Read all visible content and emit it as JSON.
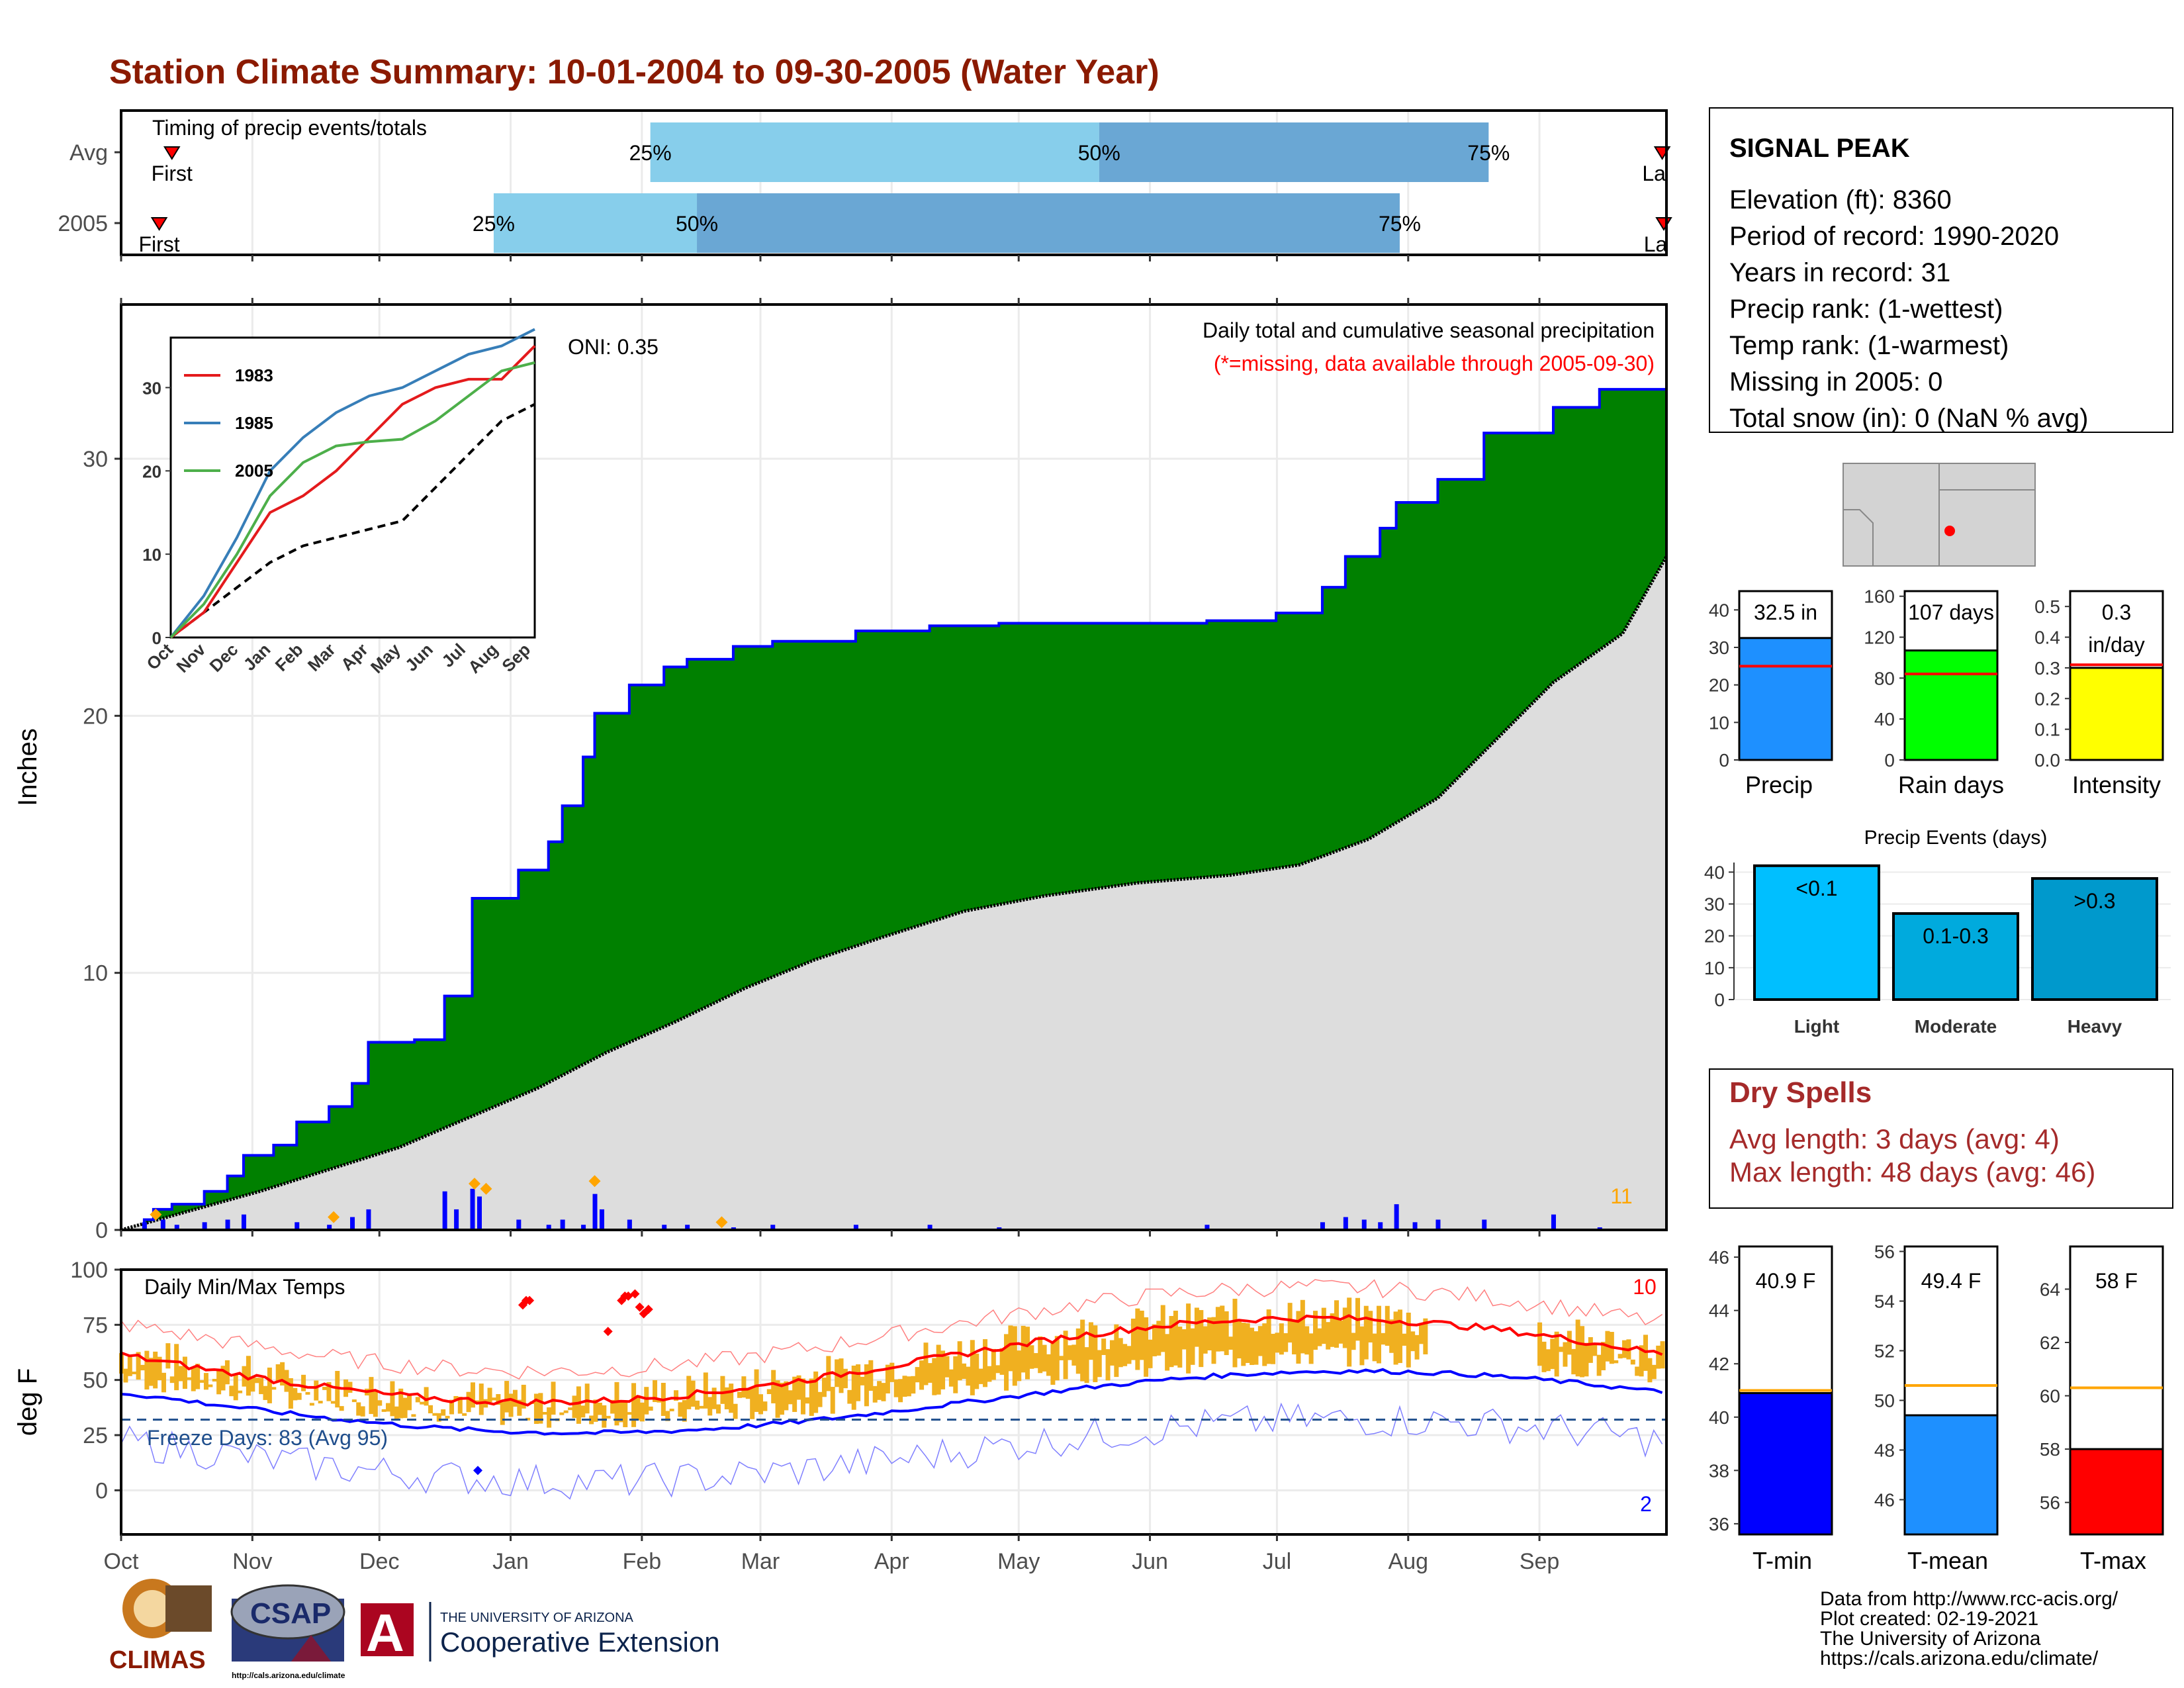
{
  "title": "Station Climate Summary: 10-01-2004 to 09-30-2005 (Water Year)",
  "months": [
    "Oct",
    "Nov",
    "Dec",
    "Jan",
    "Feb",
    "Mar",
    "Apr",
    "May",
    "Jun",
    "Jul",
    "Aug",
    "Sep"
  ],
  "timing": {
    "title": "Timing of precip events/totals",
    "rows": [
      "Avg",
      "2005"
    ],
    "first_label": "First",
    "last_label": "Last",
    "avg": {
      "first_day": 12,
      "p25_day": 125,
      "p50_day": 231,
      "p75_day": 323,
      "last_day": 364
    },
    "y2005": {
      "first_day": 9,
      "p25_day": 88,
      "p50_day": 136,
      "p75_day": 302,
      "last_day": 366
    },
    "pct_labels": [
      "25%",
      "50%",
      "75%"
    ]
  },
  "precip": {
    "ylabel": "Inches",
    "title_line1": "Daily total and cumulative seasonal precipitation",
    "title_line2": "(*=missing, data available through 2005-09-30)",
    "count_label": "11",
    "ylim": [
      0,
      36
    ],
    "yticks": [
      0,
      10,
      20,
      30
    ],
    "cum_2005": [
      [
        0,
        0
      ],
      [
        10,
        0.4
      ],
      [
        14,
        0.8
      ],
      [
        22,
        1.0
      ],
      [
        36,
        1.5
      ],
      [
        46,
        2.1
      ],
      [
        53,
        2.9
      ],
      [
        66,
        3.3
      ],
      [
        76,
        4.2
      ],
      [
        90,
        4.8
      ],
      [
        100,
        5.7
      ],
      [
        107,
        7.3
      ],
      [
        127,
        7.4
      ],
      [
        140,
        9.1
      ],
      [
        152,
        12.9
      ],
      [
        172,
        14.0
      ],
      [
        185,
        15.1
      ],
      [
        191,
        16.5
      ],
      [
        200,
        18.4
      ],
      [
        205,
        20.1
      ],
      [
        220,
        21.2
      ],
      [
        235,
        21.9
      ],
      [
        245,
        22.2
      ],
      [
        265,
        22.7
      ],
      [
        282,
        22.9
      ],
      [
        318,
        23.3
      ],
      [
        350,
        23.5
      ],
      [
        380,
        23.6
      ],
      [
        430,
        23.6
      ],
      [
        470,
        23.7
      ],
      [
        500,
        24.0
      ],
      [
        520,
        25.0
      ],
      [
        530,
        26.2
      ],
      [
        545,
        27.3
      ],
      [
        552,
        28.3
      ],
      [
        570,
        29.2
      ],
      [
        590,
        31.0
      ],
      [
        620,
        32.0
      ],
      [
        640,
        32.7
      ],
      [
        669,
        32.7
      ]
    ],
    "avg_cum": [
      [
        0,
        0
      ],
      [
        60,
        1.5
      ],
      [
        120,
        3.2
      ],
      [
        180,
        5.5
      ],
      [
        210,
        6.9
      ],
      [
        240,
        8.1
      ],
      [
        270,
        9.4
      ],
      [
        300,
        10.5
      ],
      [
        330,
        11.4
      ],
      [
        365,
        12.4
      ],
      [
        400,
        13.0
      ],
      [
        440,
        13.5
      ],
      [
        480,
        13.8
      ],
      [
        510,
        14.2
      ],
      [
        540,
        15.2
      ],
      [
        570,
        16.8
      ],
      [
        600,
        19.5
      ],
      [
        620,
        21.3
      ],
      [
        650,
        23.2
      ],
      [
        669,
        26.2
      ]
    ],
    "daily_bars": [
      [
        10,
        0.3
      ],
      [
        18,
        0.4
      ],
      [
        24,
        0.2
      ],
      [
        36,
        0.3
      ],
      [
        46,
        0.4
      ],
      [
        53,
        0.6
      ],
      [
        76,
        0.3
      ],
      [
        90,
        0.2
      ],
      [
        100,
        0.5
      ],
      [
        107,
        0.8
      ],
      [
        140,
        1.5
      ],
      [
        145,
        0.8
      ],
      [
        152,
        1.6
      ],
      [
        155,
        1.3
      ],
      [
        172,
        0.4
      ],
      [
        185,
        0.2
      ],
      [
        191,
        0.4
      ],
      [
        200,
        0.2
      ],
      [
        205,
        1.4
      ],
      [
        208,
        0.8
      ],
      [
        220,
        0.4
      ],
      [
        235,
        0.2
      ],
      [
        245,
        0.2
      ],
      [
        265,
        0.1
      ],
      [
        282,
        0.2
      ],
      [
        318,
        0.2
      ],
      [
        350,
        0.2
      ],
      [
        380,
        0.1
      ],
      [
        470,
        0.2
      ],
      [
        520,
        0.3
      ],
      [
        530,
        0.5
      ],
      [
        538,
        0.4
      ],
      [
        545,
        0.3
      ],
      [
        552,
        1.0
      ],
      [
        560,
        0.3
      ],
      [
        570,
        0.4
      ],
      [
        590,
        0.4
      ],
      [
        620,
        0.6
      ],
      [
        640,
        0.1
      ]
    ],
    "missing_marks": [
      [
        15,
        0.6
      ],
      [
        92,
        0.5
      ],
      [
        153,
        1.8
      ],
      [
        158,
        1.6
      ],
      [
        205,
        1.9
      ],
      [
        260,
        0.3
      ]
    ],
    "oni_label": "ONI: 0.35"
  },
  "inset": {
    "legend": [
      {
        "name": "1983",
        "color": "#e41a1c"
      },
      {
        "name": "1985",
        "color": "#377eb8"
      },
      {
        "name": "2005",
        "color": "#4daf4a"
      }
    ],
    "xlabels": [
      "Oct",
      "Nov",
      "Dec",
      "Jan",
      "Feb",
      "Mar",
      "Apr",
      "May",
      "Jun",
      "Jul",
      "Aug",
      "Sep"
    ],
    "yticks": [
      0,
      10,
      20,
      30
    ],
    "ylim": [
      0,
      36
    ],
    "s1983": [
      [
        0,
        0
      ],
      [
        30,
        3
      ],
      [
        60,
        9
      ],
      [
        90,
        15
      ],
      [
        120,
        17
      ],
      [
        150,
        20
      ],
      [
        180,
        24
      ],
      [
        210,
        28
      ],
      [
        240,
        30
      ],
      [
        270,
        31
      ],
      [
        300,
        31
      ],
      [
        330,
        35
      ]
    ],
    "s1985": [
      [
        0,
        0
      ],
      [
        30,
        5
      ],
      [
        60,
        12
      ],
      [
        90,
        20
      ],
      [
        120,
        24
      ],
      [
        150,
        27
      ],
      [
        180,
        29
      ],
      [
        210,
        30
      ],
      [
        240,
        32
      ],
      [
        270,
        34
      ],
      [
        300,
        35
      ],
      [
        330,
        37
      ]
    ],
    "s2005": [
      [
        0,
        0
      ],
      [
        30,
        4
      ],
      [
        60,
        10
      ],
      [
        90,
        17
      ],
      [
        120,
        21
      ],
      [
        150,
        23
      ],
      [
        180,
        23.5
      ],
      [
        210,
        23.8
      ],
      [
        240,
        26
      ],
      [
        270,
        29
      ],
      [
        300,
        32
      ],
      [
        330,
        33
      ]
    ],
    "avg": [
      [
        0,
        0
      ],
      [
        30,
        3
      ],
      [
        60,
        6
      ],
      [
        90,
        9
      ],
      [
        120,
        11
      ],
      [
        150,
        12
      ],
      [
        180,
        13
      ],
      [
        210,
        14
      ],
      [
        240,
        18
      ],
      [
        270,
        22
      ],
      [
        300,
        26
      ],
      [
        330,
        28
      ]
    ]
  },
  "temps": {
    "ylabel": "deg F",
    "title": "Daily Min/Max Temps",
    "freeze_label": "Freeze Days: 83 (Avg 95)",
    "max_count": "10",
    "min_count": "2",
    "ylim": [
      -20,
      100
    ],
    "yticks": [
      0,
      25,
      50,
      75,
      100
    ],
    "freeze_line": 32
  },
  "station": {
    "name": "SIGNAL PEAK",
    "lines": [
      "Elevation (ft): 8360",
      "Period of record: 1990-2020",
      "Years in record: 31",
      "Precip rank:  (1-wettest)",
      "Temp rank:  (1-warmest)",
      "Missing in 2005: 0",
      "Total snow (in): 0 (NaN % avg)"
    ]
  },
  "bar_panels": [
    {
      "label": "Precip",
      "value_label": "32.5 in",
      "value": 32.5,
      "avg": 25,
      "ymax": 45,
      "ticks": [
        0,
        10,
        20,
        30,
        40
      ],
      "color": "#1e90ff"
    },
    {
      "label": "Rain days",
      "value_label": "107 days",
      "value": 107,
      "avg": 84,
      "ymax": 165,
      "ticks": [
        0,
        40,
        80,
        120,
        160
      ],
      "color": "#00ff00"
    },
    {
      "label": "Intensity",
      "value_label": "0.3",
      "value_label2": "in/day",
      "value": 0.3,
      "avg": 0.31,
      "ymax": 0.55,
      "ticks": [
        0.0,
        0.1,
        0.2,
        0.3,
        0.4,
        0.5
      ],
      "color": "#ffff00"
    }
  ],
  "events": {
    "title": "Precip Events (days)",
    "ymax": 43,
    "yticks": [
      0,
      10,
      20,
      30,
      40
    ],
    "bars": [
      {
        "cat": "Light",
        "label": "<0.1",
        "value": 42,
        "color": "#00bfff"
      },
      {
        "cat": "Moderate",
        "label": "0.1-0.3",
        "value": 27,
        "color": "#00aadd"
      },
      {
        "cat": "Heavy",
        "label": ">0.3",
        "value": 38,
        "color": "#0099cc"
      }
    ]
  },
  "dry_spells": {
    "title": "Dry Spells",
    "line1": "Avg length: 3 days (avg: 4)",
    "line2": "Max length: 48 days (avg: 46)"
  },
  "temp_panels": [
    {
      "label": "T-min",
      "value_label": "40.9 F",
      "value": 40.9,
      "avg": 41.0,
      "ymin": 35.6,
      "ymax": 46.4,
      "ticks": [
        36,
        38,
        40,
        42,
        44,
        46
      ],
      "color": "#0000ff"
    },
    {
      "label": "T-mean",
      "value_label": "49.4 F",
      "value": 49.4,
      "avg": 50.6,
      "ymin": 44.6,
      "ymax": 56.2,
      "ticks": [
        46,
        48,
        50,
        52,
        54,
        56
      ],
      "color": "#1e90ff"
    },
    {
      "label": "T-max",
      "value_label": "58 F",
      "value": 58,
      "avg": 60.3,
      "ymin": 54.8,
      "ymax": 65.6,
      "ticks": [
        56,
        58,
        60,
        62,
        64
      ],
      "color": "#ff0000"
    }
  ],
  "credits": [
    "Data from http://www.rcc-acis.org/",
    "Plot created: 02-19-2021",
    "The University of Arizona",
    "https://cals.arizona.edu/climate/"
  ],
  "logos": {
    "climas": "CLIMAS",
    "csap": "CSAP",
    "csap_url": "http://cals.arizona.edu/climate",
    "ua_line1": "THE UNIVERSITY OF ARIZONA",
    "ua_line2": "Cooperative Extension",
    "ua_letter": "A"
  },
  "colors": {
    "title": "#8b1a00",
    "green": "#008000",
    "gray": "#dddddd",
    "blue": "#0000ff",
    "orange": "#f0b020",
    "red": "#ff0000",
    "light": "#87ceeb",
    "mid": "#6aa7d4",
    "drytext": "#a52a2a"
  }
}
